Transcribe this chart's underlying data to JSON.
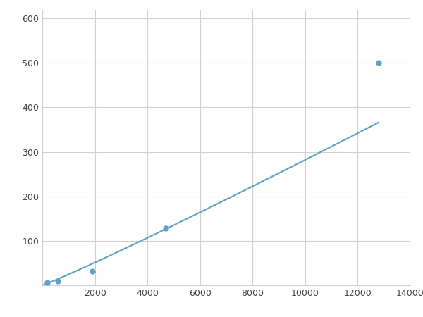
{
  "x_points": [
    200,
    600,
    1900,
    4700,
    12800
  ],
  "y_points": [
    7,
    10,
    32,
    128,
    500
  ],
  "line_color": "#5ba3c9",
  "marker_color": "#5ba3c9",
  "marker_size": 5,
  "line_width": 1.5,
  "xlim": [
    0,
    14000
  ],
  "ylim": [
    0,
    620
  ],
  "xticks": [
    0,
    2000,
    4000,
    6000,
    8000,
    10000,
    12000,
    14000
  ],
  "yticks": [
    0,
    100,
    200,
    300,
    400,
    500,
    600
  ],
  "grid_color": "#d0d0d0",
  "background_color": "#ffffff",
  "figure_bg": "#ffffff"
}
